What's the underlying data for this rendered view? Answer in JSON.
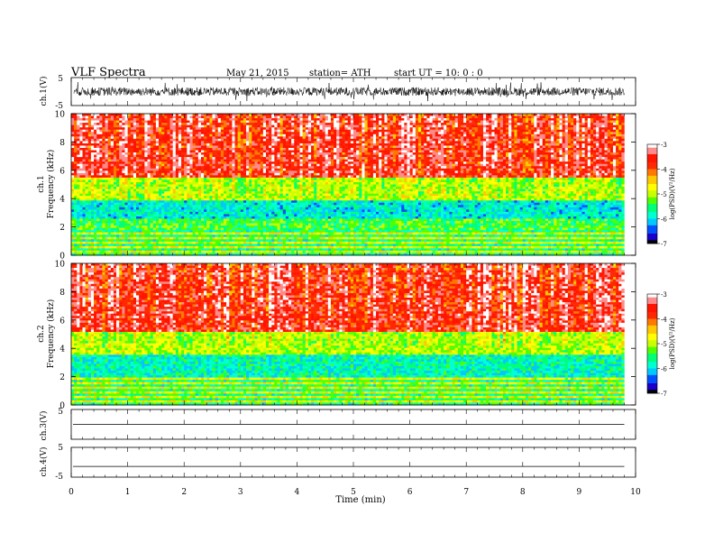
{
  "header": {
    "title": "VLF  Spectra",
    "date": "May 21, 2015",
    "station": "station= ATH",
    "start": "start  UT =   10: 0  : 0"
  },
  "chart_data": [
    {
      "type": "line",
      "panel": "ch1-waveform",
      "ylabel": "ch.1(V)",
      "ylim": [
        -5,
        5
      ],
      "yticks": [
        "5",
        "-5"
      ],
      "xlim": [
        0,
        10
      ],
      "signal_range": [
        -1.5,
        1.5
      ],
      "color": "#000000"
    },
    {
      "type": "heatmap",
      "panel": "ch1-spectrogram",
      "ylabel": "Frequency  (kHz)",
      "channel_label": "ch.1",
      "ylim": [
        0,
        10
      ],
      "yticks": [
        "0",
        "2",
        "4",
        "6",
        "8",
        "10"
      ],
      "xlim": [
        0,
        9.8
      ],
      "colorbar": {
        "label": "log(PSD)(V²/Hz)",
        "range": [
          -7,
          -3
        ],
        "ticks": [
          "-3",
          "-4",
          "-5",
          "-6",
          "-7"
        ]
      },
      "bands": [
        {
          "from_khz": 0,
          "to_khz": 1.8,
          "level": -5.6,
          "note": "striped low band"
        },
        {
          "from_khz": 1.8,
          "to_khz": 2.6,
          "level": -5.4
        },
        {
          "from_khz": 2.6,
          "to_khz": 3.8,
          "level": -5.9
        },
        {
          "from_khz": 3.8,
          "to_khz": 5.5,
          "level": -5.0
        },
        {
          "from_khz": 5.5,
          "to_khz": 10,
          "level": -3.6
        }
      ]
    },
    {
      "type": "heatmap",
      "panel": "ch2-spectrogram",
      "ylabel": "Frequency  (kHz)",
      "channel_label": "ch.2",
      "ylim": [
        0,
        10
      ],
      "yticks": [
        "0",
        "2",
        "4",
        "6",
        "8",
        "10"
      ],
      "xlim": [
        0,
        9.8
      ],
      "colorbar": {
        "label": "log(PSD)(V²/Hz)",
        "range": [
          -7,
          -3
        ],
        "ticks": [
          "-3",
          "-4",
          "-5",
          "-6",
          "-7"
        ]
      },
      "bands": [
        {
          "from_khz": 0,
          "to_khz": 2.0,
          "level": -5.6,
          "note": "striped low band"
        },
        {
          "from_khz": 2.0,
          "to_khz": 3.6,
          "level": -5.8
        },
        {
          "from_khz": 3.6,
          "to_khz": 5.2,
          "level": -5.0
        },
        {
          "from_khz": 5.2,
          "to_khz": 10,
          "level": -3.6
        }
      ]
    },
    {
      "type": "line",
      "panel": "ch3-waveform",
      "ylabel": "ch.3(V)",
      "ylim": [
        -5,
        5
      ],
      "yticks": [
        "5",
        "-5"
      ],
      "xlim": [
        0,
        9.8
      ],
      "signal_level": 0,
      "color": "#000000"
    },
    {
      "type": "line",
      "panel": "ch4-waveform",
      "ylabel": "ch.4(V)",
      "ylim": [
        -5,
        5
      ],
      "yticks": [
        "5",
        "-5"
      ],
      "xlim": [
        0,
        9.8
      ],
      "signal_level": -1.4,
      "color": "#000000"
    }
  ],
  "x_axis": {
    "label": "Time  (min)",
    "range": [
      0,
      10
    ],
    "ticks": [
      "0",
      "1",
      "2",
      "3",
      "4",
      "5",
      "6",
      "7",
      "8",
      "9",
      "10"
    ]
  },
  "colormap": [
    "#000000",
    "#1a00c8",
    "#0050ff",
    "#00c8ff",
    "#00ffd2",
    "#00ff78",
    "#50ff00",
    "#c8ff00",
    "#ffff00",
    "#ffc800",
    "#ff7800",
    "#ff2800",
    "#ff1400",
    "#ff8a8a",
    "#ffffff"
  ]
}
